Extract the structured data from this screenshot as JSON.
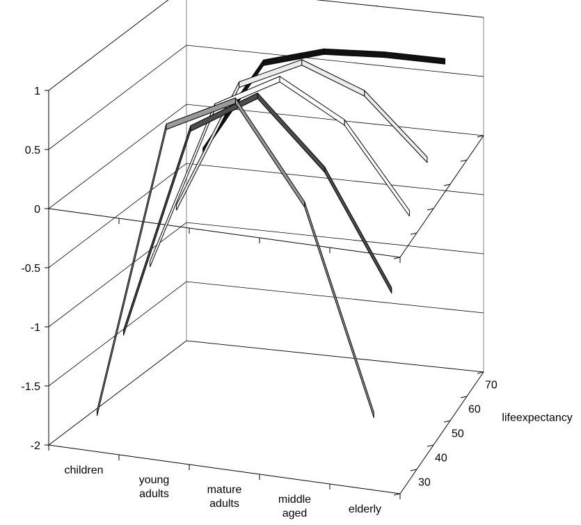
{
  "chart_data": {
    "type": "line",
    "subtype": "3d-line",
    "title": "",
    "categories": [
      "children",
      "young adults",
      "mature adults",
      "middle aged",
      "elderly"
    ],
    "category_lines": [
      [
        "children"
      ],
      [
        "young",
        "adults"
      ],
      [
        "mature",
        "adults"
      ],
      [
        "middle",
        "aged"
      ],
      [
        "elderly"
      ]
    ],
    "depth_axis": {
      "label": "lifeexpectancy",
      "ticks": [
        "30",
        "40",
        "50",
        "60",
        "70"
      ]
    },
    "y_ticks": [
      "1",
      "0.5",
      "0",
      "-0.5",
      "-1",
      "-1.5",
      "-2"
    ],
    "ylim": [
      -2,
      1
    ],
    "grid": true,
    "legend_position": "top",
    "series": [
      {
        "name": "30",
        "color": "#9a9a9a",
        "values": [
          -1.8,
          0.7,
          1.0,
          0.2,
          -1.5
        ]
      },
      {
        "name": "40",
        "color": "#4d4d4d",
        "values": [
          -1.3,
          0.5,
          0.85,
          0.3,
          -0.65
        ]
      },
      {
        "name": "50",
        "color": "#ffffff",
        "values": [
          -0.9,
          0.5,
          0.8,
          0.5,
          -0.2
        ]
      },
      {
        "name": "60",
        "color": "#ececec",
        "values": [
          -0.6,
          0.5,
          0.75,
          0.55,
          0.05
        ]
      },
      {
        "name": "70",
        "color": "#111111",
        "values": [
          -0.3,
          0.5,
          0.65,
          0.68,
          0.68
        ]
      }
    ]
  }
}
